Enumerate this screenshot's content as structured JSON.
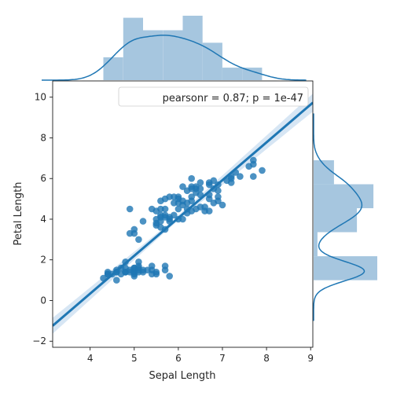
{
  "chart_data": {
    "type": "scatter",
    "subtype": "jointplot-regression",
    "xlabel": "Sepal Length",
    "ylabel": "Petal Length",
    "xlim": [
      3.15,
      9.05
    ],
    "ylim": [
      -2.3,
      10.8
    ],
    "xticks": [
      "4",
      "5",
      "6",
      "7",
      "8",
      "9"
    ],
    "yticks": [
      "−2",
      "0",
      "2",
      "4",
      "6",
      "8",
      "10"
    ],
    "annotation": "pearsonr = 0.87; p = 1e-47",
    "annotation_position": "top-right",
    "grid": false,
    "colors": {
      "points": "#1f77b4",
      "regression_line": "#1f77b4",
      "histogram_fill": "#a6c6df",
      "confidence_band": "#c6dbef"
    },
    "regression": {
      "slope": 1.86,
      "intercept": -7.1
    },
    "points": [
      [
        4.3,
        1.1
      ],
      [
        4.4,
        1.4
      ],
      [
        4.4,
        1.3
      ],
      [
        4.4,
        1.3
      ],
      [
        4.5,
        1.3
      ],
      [
        4.6,
        1.4
      ],
      [
        4.6,
        1.5
      ],
      [
        4.6,
        1.0
      ],
      [
        4.6,
        1.4
      ],
      [
        4.7,
        1.3
      ],
      [
        4.7,
        1.6
      ],
      [
        4.8,
        1.4
      ],
      [
        4.8,
        1.6
      ],
      [
        4.8,
        1.4
      ],
      [
        4.8,
        1.9
      ],
      [
        4.8,
        1.4
      ],
      [
        4.9,
        1.4
      ],
      [
        4.9,
        1.5
      ],
      [
        4.9,
        4.5
      ],
      [
        4.9,
        3.3
      ],
      [
        5.0,
        1.4
      ],
      [
        5.0,
        1.5
      ],
      [
        5.0,
        1.6
      ],
      [
        5.0,
        1.2
      ],
      [
        5.0,
        1.3
      ],
      [
        5.0,
        1.6
      ],
      [
        5.0,
        1.4
      ],
      [
        5.0,
        3.5
      ],
      [
        5.0,
        3.3
      ],
      [
        5.1,
        1.4
      ],
      [
        5.1,
        1.5
      ],
      [
        5.1,
        1.7
      ],
      [
        5.1,
        1.9
      ],
      [
        5.1,
        1.6
      ],
      [
        5.1,
        3.0
      ],
      [
        5.2,
        1.5
      ],
      [
        5.2,
        1.4
      ],
      [
        5.2,
        3.9
      ],
      [
        5.3,
        1.5
      ],
      [
        5.4,
        1.7
      ],
      [
        5.4,
        1.5
      ],
      [
        5.4,
        1.3
      ],
      [
        5.4,
        4.5
      ],
      [
        5.5,
        1.4
      ],
      [
        5.5,
        1.3
      ],
      [
        5.5,
        4.0
      ],
      [
        5.5,
        3.8
      ],
      [
        5.5,
        3.7
      ],
      [
        5.5,
        4.4
      ],
      [
        5.6,
        4.5
      ],
      [
        5.6,
        4.1
      ],
      [
        5.6,
        3.9
      ],
      [
        5.6,
        4.2
      ],
      [
        5.6,
        4.9
      ],
      [
        5.6,
        3.6
      ],
      [
        5.7,
        1.5
      ],
      [
        5.7,
        1.7
      ],
      [
        5.7,
        4.5
      ],
      [
        5.7,
        3.5
      ],
      [
        5.7,
        4.2
      ],
      [
        5.7,
        4.1
      ],
      [
        5.7,
        5.0
      ],
      [
        5.8,
        1.2
      ],
      [
        5.8,
        4.1
      ],
      [
        5.8,
        4.0
      ],
      [
        5.8,
        3.9
      ],
      [
        5.8,
        5.1
      ],
      [
        5.9,
        4.8
      ],
      [
        5.9,
        4.2
      ],
      [
        5.9,
        5.1
      ],
      [
        6.0,
        4.5
      ],
      [
        6.0,
        4.0
      ],
      [
        6.0,
        5.1
      ],
      [
        6.0,
        4.8
      ],
      [
        6.0,
        5.0
      ],
      [
        6.1,
        4.7
      ],
      [
        6.1,
        4.0
      ],
      [
        6.1,
        5.6
      ],
      [
        6.1,
        4.9
      ],
      [
        6.2,
        4.3
      ],
      [
        6.2,
        4.5
      ],
      [
        6.2,
        5.4
      ],
      [
        6.2,
        4.8
      ],
      [
        6.3,
        4.9
      ],
      [
        6.3,
        4.4
      ],
      [
        6.3,
        6.0
      ],
      [
        6.3,
        5.6
      ],
      [
        6.3,
        5.1
      ],
      [
        6.3,
        5.5
      ],
      [
        6.4,
        4.5
      ],
      [
        6.4,
        5.3
      ],
      [
        6.4,
        5.5
      ],
      [
        6.4,
        5.6
      ],
      [
        6.5,
        4.6
      ],
      [
        6.5,
        5.8
      ],
      [
        6.5,
        5.2
      ],
      [
        6.5,
        5.5
      ],
      [
        6.6,
        4.6
      ],
      [
        6.6,
        4.4
      ],
      [
        6.7,
        4.4
      ],
      [
        6.7,
        5.0
      ],
      [
        6.7,
        5.8
      ],
      [
        6.7,
        5.7
      ],
      [
        6.7,
        5.2
      ],
      [
        6.8,
        4.8
      ],
      [
        6.8,
        5.5
      ],
      [
        6.8,
        5.9
      ],
      [
        6.9,
        4.9
      ],
      [
        6.9,
        5.4
      ],
      [
        6.9,
        5.7
      ],
      [
        6.9,
        5.1
      ],
      [
        7.0,
        4.7
      ],
      [
        7.1,
        5.9
      ],
      [
        7.2,
        6.1
      ],
      [
        7.2,
        5.8
      ],
      [
        7.2,
        6.0
      ],
      [
        7.3,
        6.3
      ],
      [
        7.4,
        6.1
      ],
      [
        7.6,
        6.6
      ],
      [
        7.7,
        6.7
      ],
      [
        7.7,
        6.9
      ],
      [
        7.7,
        6.1
      ],
      [
        7.9,
        6.4
      ]
    ],
    "x_marginal_histogram": {
      "bins": [
        4.3,
        4.75,
        5.2,
        5.65,
        6.1,
        6.55,
        7.0,
        7.45,
        7.9
      ],
      "counts": [
        11,
        30,
        24,
        24,
        31,
        18,
        6,
        6
      ]
    },
    "y_marginal_histogram": {
      "bins": [
        1.0,
        2.18,
        3.36,
        4.54,
        5.72,
        6.9
      ],
      "counts": [
        50,
        3,
        34,
        47,
        16
      ]
    }
  }
}
